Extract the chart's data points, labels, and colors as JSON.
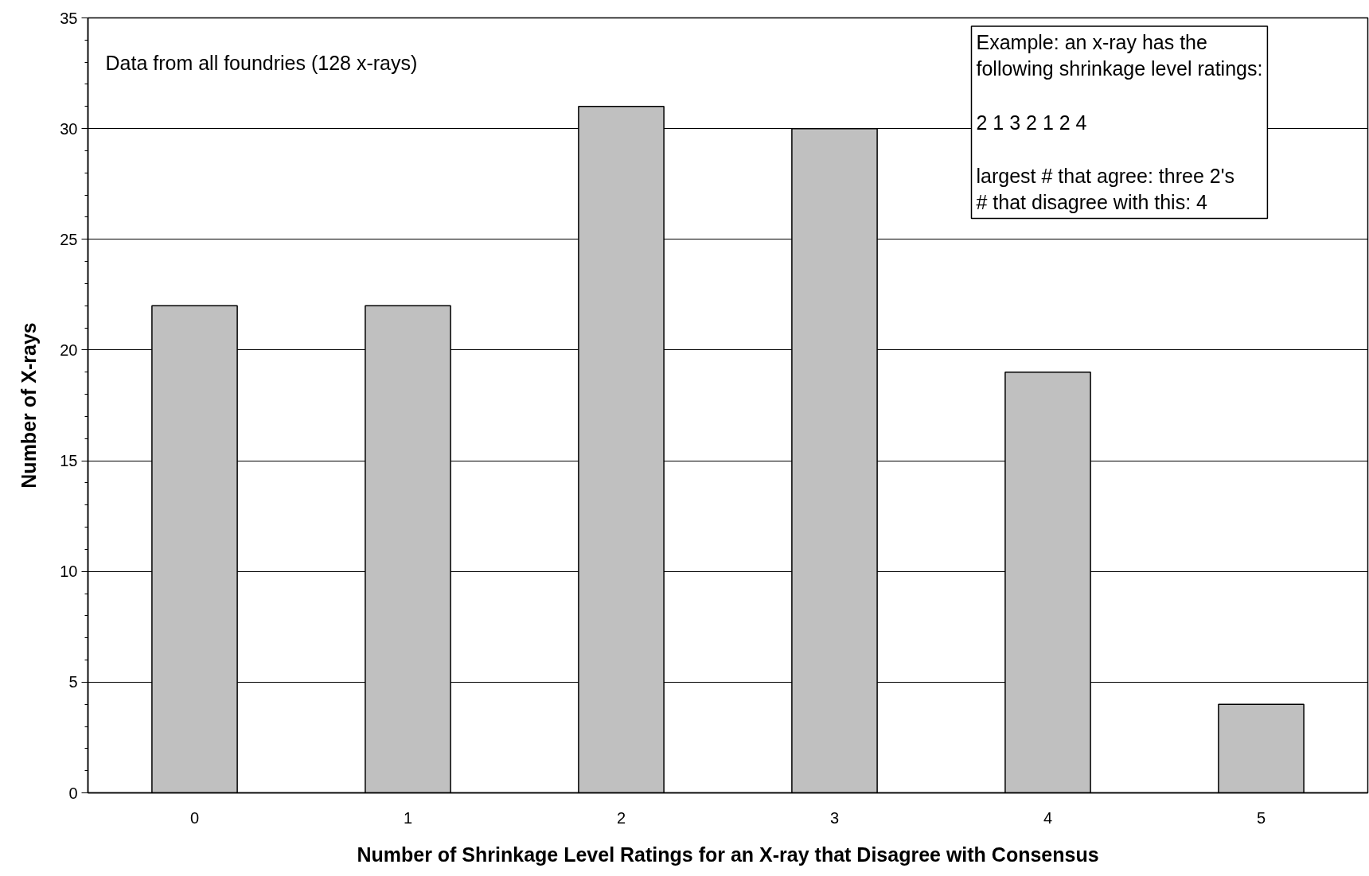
{
  "chart_data": {
    "type": "bar",
    "categories": [
      "0",
      "1",
      "2",
      "3",
      "4",
      "5"
    ],
    "values": [
      22,
      22,
      31,
      30,
      19,
      4
    ],
    "color": "#c0c0c0",
    "xlabel": "Number of Shrinkage Level Ratings for an X-ray that Disagree with Consensus",
    "ylabel": "Number of X-rays",
    "ylim": [
      0,
      35
    ],
    "yticks": [
      0,
      5,
      10,
      15,
      20,
      25,
      30,
      35
    ],
    "grid": "y",
    "annotations": [
      "Data from all foundries (128 x-rays)",
      "Example: an x-ray has the\nfollowing shrinkage level ratings:\n\n2  1  3  2  1  2  4\n\nlargest # that agree: three 2's\n# that disagree with this: 4"
    ]
  }
}
